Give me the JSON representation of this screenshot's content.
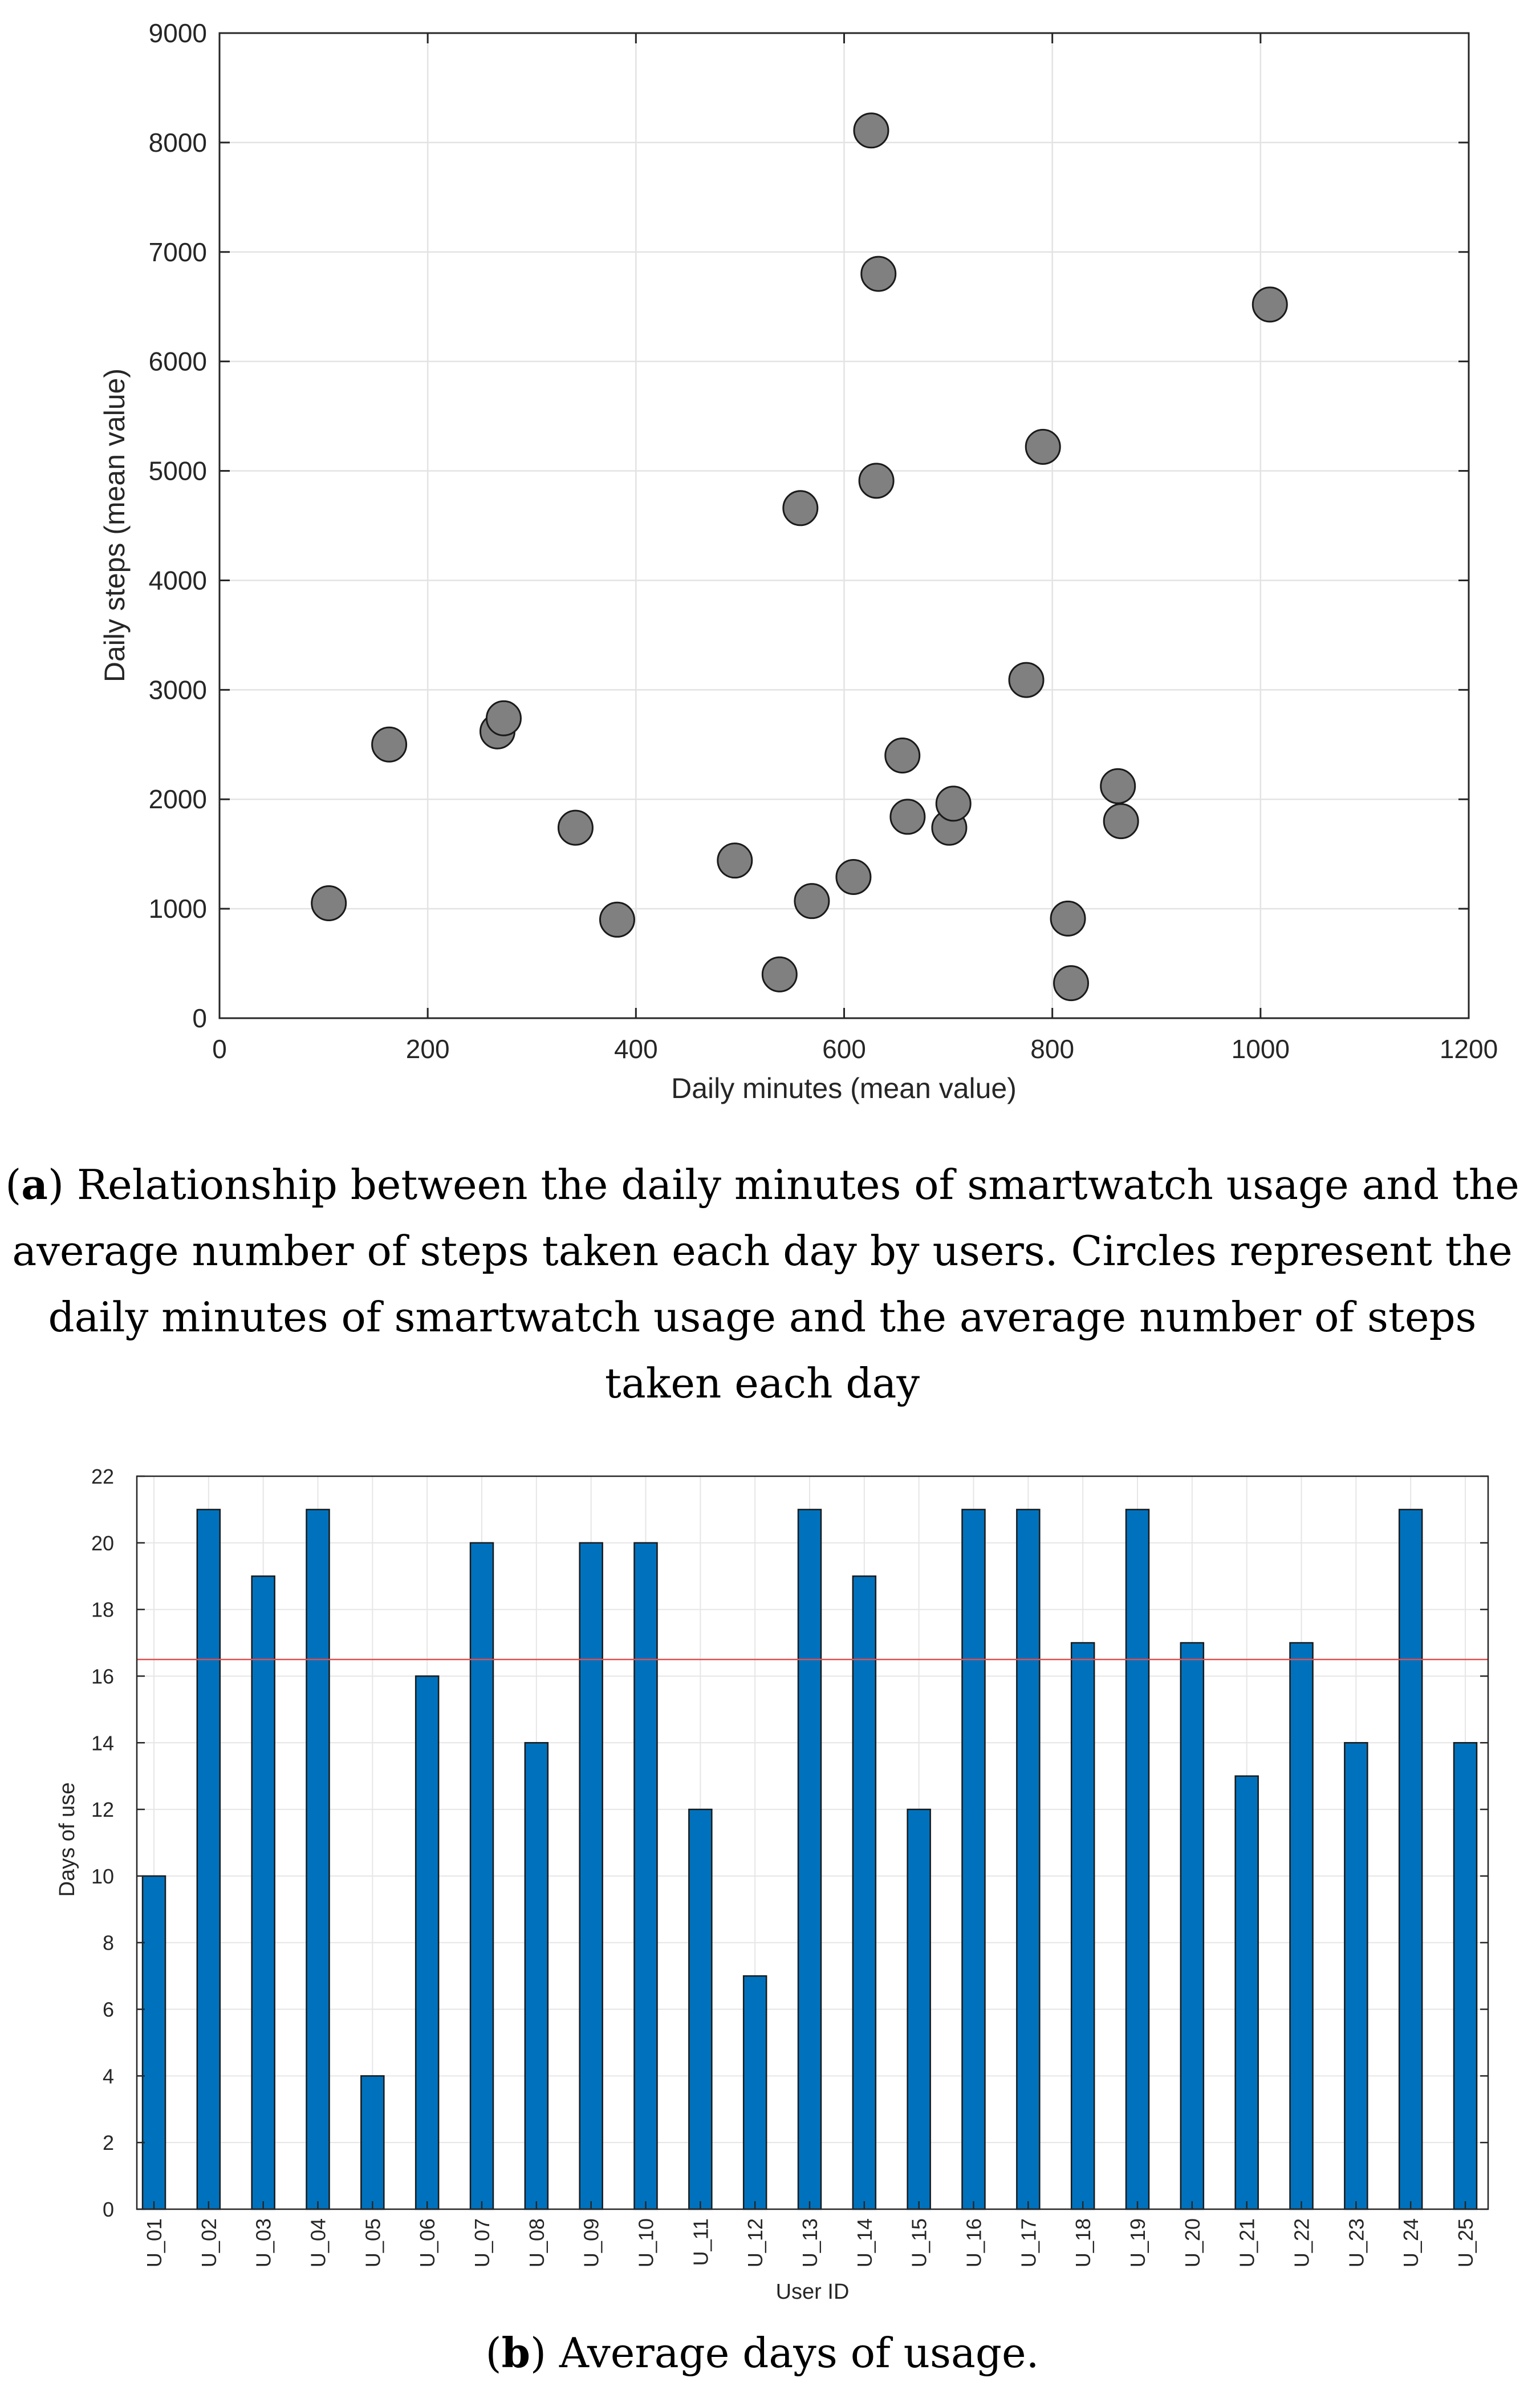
{
  "chart_data": [
    {
      "type": "scatter",
      "xlabel": "Daily minutes (mean value)",
      "ylabel": "Daily steps (mean value)",
      "xlim": [
        0,
        1200
      ],
      "ylim": [
        0,
        9000
      ],
      "xticks": [
        0,
        200,
        400,
        600,
        800,
        1000,
        1200
      ],
      "yticks": [
        0,
        1000,
        2000,
        3000,
        4000,
        5000,
        6000,
        7000,
        8000,
        9000
      ],
      "grid": true,
      "marker_color": "#808080",
      "points": [
        {
          "x": 105,
          "y": 1050
        },
        {
          "x": 163,
          "y": 2500
        },
        {
          "x": 267,
          "y": 2620
        },
        {
          "x": 273,
          "y": 2740
        },
        {
          "x": 342,
          "y": 1740
        },
        {
          "x": 382,
          "y": 900
        },
        {
          "x": 495,
          "y": 1440
        },
        {
          "x": 538,
          "y": 400
        },
        {
          "x": 558,
          "y": 4660
        },
        {
          "x": 569,
          "y": 1070
        },
        {
          "x": 609,
          "y": 1290
        },
        {
          "x": 626,
          "y": 8110
        },
        {
          "x": 631,
          "y": 4910
        },
        {
          "x": 633,
          "y": 6800
        },
        {
          "x": 656,
          "y": 2400
        },
        {
          "x": 661,
          "y": 1840
        },
        {
          "x": 701,
          "y": 1740
        },
        {
          "x": 705,
          "y": 1960
        },
        {
          "x": 775,
          "y": 3090
        },
        {
          "x": 791,
          "y": 5220
        },
        {
          "x": 815,
          "y": 910
        },
        {
          "x": 818,
          "y": 320
        },
        {
          "x": 863,
          "y": 2120
        },
        {
          "x": 866,
          "y": 1800
        },
        {
          "x": 1009,
          "y": 6520
        }
      ],
      "caption": {
        "letter": "a",
        "open": "(",
        "close": ")",
        "lines": [
          " Relationship between the daily minutes of smartwatch usage and the",
          "average number of steps taken each day by users. Circles represent the",
          "daily minutes of smartwatch usage and the average number of steps",
          "taken each day"
        ]
      }
    },
    {
      "type": "bar",
      "xlabel": "User ID",
      "ylabel": "Days of use",
      "ylim": [
        0,
        22
      ],
      "yticks": [
        0,
        2,
        4,
        6,
        8,
        10,
        12,
        14,
        16,
        18,
        20,
        22
      ],
      "grid": true,
      "bar_color": "#0072BD",
      "reference_line": {
        "value": 16.5,
        "color": "#E05050"
      },
      "categories": [
        "U_01",
        "U_02",
        "U_03",
        "U_04",
        "U_05",
        "U_06",
        "U_07",
        "U_08",
        "U_09",
        "U_10",
        "U_11",
        "U_12",
        "U_13",
        "U_14",
        "U_15",
        "U_16",
        "U_17",
        "U_18",
        "U_19",
        "U_20",
        "U_21",
        "U_22",
        "U_23",
        "U_24",
        "U_25"
      ],
      "values": [
        10,
        21,
        19,
        21,
        4,
        16,
        20,
        14,
        20,
        20,
        12,
        7,
        21,
        19,
        12,
        21,
        21,
        17,
        21,
        17,
        13,
        17,
        14,
        21,
        14
      ],
      "caption": {
        "letter": "b",
        "open": "(",
        "close": ")",
        "lines": [
          " Average days of usage."
        ]
      }
    }
  ]
}
